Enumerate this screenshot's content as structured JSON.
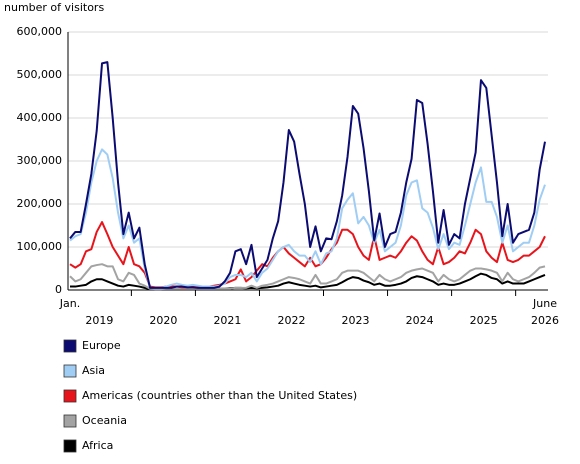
{
  "chart_data": {
    "type": "line",
    "y_axis_label": "number of visitors",
    "x_start_label": "Jan.",
    "x_end_label": "June",
    "year_labels": [
      "2019",
      "2020",
      "2021",
      "2022",
      "2023",
      "2024",
      "2025",
      "2026"
    ],
    "ylim": [
      0,
      600000
    ],
    "yticks": [
      0,
      {
        "value": 100000,
        "label": "100,000"
      },
      {
        "value": 200000,
        "label": "200,000"
      },
      {
        "value": 300000,
        "label": "300,000"
      },
      {
        "value": 400000,
        "label": "400,000"
      },
      {
        "value": 500000,
        "label": "500,000"
      },
      {
        "value": 600000,
        "label": "600,000"
      }
    ],
    "grid": true,
    "series": [
      {
        "name": "Europe",
        "color": "#0b0b72",
        "values": [
          120000,
          135000,
          135000,
          200000,
          270000,
          370000,
          527000,
          530000,
          400000,
          250000,
          130000,
          180000,
          120000,
          145000,
          60000,
          5000,
          5000,
          5000,
          5000,
          5000,
          8000,
          8000,
          6000,
          6000,
          5000,
          5000,
          5000,
          5000,
          8000,
          20000,
          40000,
          90000,
          95000,
          60000,
          105000,
          30000,
          50000,
          70000,
          120000,
          160000,
          250000,
          372000,
          345000,
          270000,
          200000,
          100000,
          148000,
          90000,
          120000,
          118000,
          160000,
          220000,
          310000,
          428000,
          410000,
          330000,
          230000,
          115000,
          178000,
          100000,
          130000,
          135000,
          180000,
          250000,
          305000,
          442000,
          435000,
          340000,
          230000,
          110000,
          186000,
          105000,
          130000,
          120000,
          200000,
          260000,
          320000,
          488000,
          470000,
          360000,
          250000,
          125000,
          200000,
          110000,
          130000,
          135000,
          140000,
          180000,
          280000,
          345000
        ]
      },
      {
        "name": "Asia",
        "color": "#9fcdf4",
        "values": [
          115000,
          125000,
          130000,
          180000,
          250000,
          300000,
          327000,
          315000,
          260000,
          180000,
          120000,
          150000,
          110000,
          120000,
          50000,
          5000,
          5000,
          5000,
          8000,
          12000,
          15000,
          12000,
          10000,
          12000,
          10000,
          8000,
          8000,
          8000,
          10000,
          15000,
          30000,
          35000,
          35000,
          30000,
          40000,
          20000,
          40000,
          50000,
          70000,
          90000,
          100000,
          105000,
          90000,
          80000,
          80000,
          65000,
          90000,
          60000,
          85000,
          90000,
          120000,
          190000,
          210000,
          225000,
          155000,
          170000,
          150000,
          110000,
          140000,
          90000,
          100000,
          110000,
          150000,
          220000,
          250000,
          255000,
          190000,
          180000,
          145000,
          95000,
          130000,
          95000,
          110000,
          105000,
          150000,
          200000,
          250000,
          285000,
          205000,
          205000,
          170000,
          110000,
          150000,
          90000,
          100000,
          110000,
          110000,
          150000,
          210000,
          245000
        ]
      },
      {
        "name": "Americas (countries other than the United States)",
        "color": "#e8141b",
        "values": [
          60000,
          52000,
          60000,
          90000,
          95000,
          135000,
          158000,
          130000,
          100000,
          80000,
          60000,
          100000,
          60000,
          55000,
          40000,
          8000,
          6000,
          6000,
          8000,
          8000,
          8000,
          6000,
          6000,
          8000,
          6000,
          6000,
          8000,
          10000,
          12000,
          15000,
          20000,
          25000,
          48000,
          20000,
          30000,
          45000,
          60000,
          55000,
          75000,
          90000,
          100000,
          85000,
          75000,
          65000,
          55000,
          75000,
          55000,
          60000,
          75000,
          95000,
          110000,
          140000,
          140000,
          130000,
          100000,
          80000,
          70000,
          125000,
          70000,
          75000,
          80000,
          75000,
          90000,
          110000,
          125000,
          115000,
          90000,
          70000,
          60000,
          100000,
          60000,
          65000,
          75000,
          90000,
          85000,
          110000,
          140000,
          130000,
          90000,
          75000,
          65000,
          110000,
          70000,
          65000,
          70000,
          80000,
          80000,
          90000,
          100000,
          125000
        ]
      },
      {
        "name": "Oceania",
        "color": "#a3a3a3",
        "values": [
          32000,
          20000,
          25000,
          40000,
          55000,
          58000,
          60000,
          55000,
          55000,
          25000,
          20000,
          40000,
          35000,
          15000,
          10000,
          3000,
          2000,
          2000,
          3000,
          3000,
          3000,
          3000,
          3000,
          3000,
          3000,
          3000,
          3000,
          3000,
          3000,
          3000,
          3000,
          5000,
          5000,
          5000,
          10000,
          5000,
          10000,
          12000,
          15000,
          20000,
          25000,
          30000,
          28000,
          25000,
          20000,
          15000,
          35000,
          15000,
          15000,
          20000,
          25000,
          40000,
          45000,
          45000,
          45000,
          40000,
          30000,
          20000,
          35000,
          25000,
          20000,
          25000,
          30000,
          40000,
          45000,
          48000,
          50000,
          45000,
          40000,
          20000,
          35000,
          25000,
          20000,
          25000,
          35000,
          45000,
          50000,
          50000,
          48000,
          45000,
          40000,
          20000,
          40000,
          25000,
          20000,
          25000,
          30000,
          40000,
          52000,
          55000
        ]
      },
      {
        "name": "Africa",
        "color": "#000000",
        "values": [
          8000,
          8000,
          10000,
          12000,
          20000,
          25000,
          25000,
          20000,
          15000,
          10000,
          8000,
          12000,
          10000,
          8000,
          5000,
          2000,
          2000,
          2000,
          2000,
          2000,
          2000,
          2000,
          2000,
          2000,
          2000,
          2000,
          2000,
          3000,
          3000,
          3000,
          4000,
          5000,
          5000,
          4000,
          5000,
          4000,
          5000,
          6000,
          8000,
          10000,
          15000,
          18000,
          15000,
          12000,
          10000,
          8000,
          10000,
          6000,
          8000,
          10000,
          12000,
          18000,
          25000,
          30000,
          28000,
          22000,
          18000,
          12000,
          15000,
          10000,
          10000,
          12000,
          15000,
          20000,
          28000,
          32000,
          30000,
          25000,
          20000,
          12000,
          15000,
          12000,
          12000,
          15000,
          20000,
          25000,
          32000,
          38000,
          35000,
          28000,
          25000,
          15000,
          20000,
          15000,
          15000,
          15000,
          20000,
          25000,
          30000,
          35000
        ]
      }
    ]
  }
}
